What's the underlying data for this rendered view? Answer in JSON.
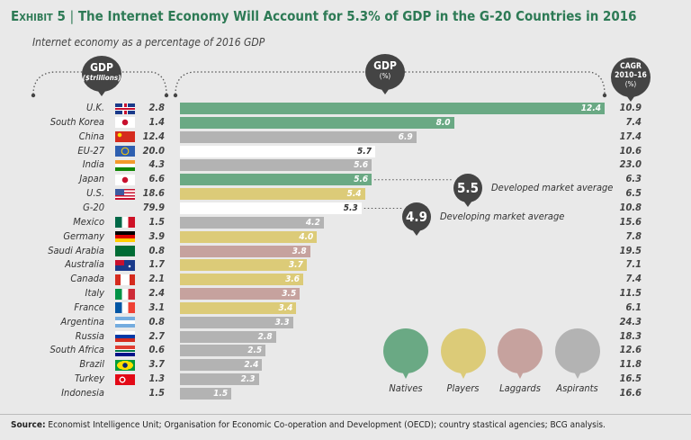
{
  "header": {
    "exhibit": "Exhibit 5",
    "separator": "|",
    "title": "The Internet Economy Will Account for 5.3% of GDP in the G-20 Countries in 2016",
    "subtitle": "Internet economy as a percentage of 2016 GDP"
  },
  "column_headers": {
    "gdp_title": "GDP",
    "gdp_unit": "($trillions)",
    "pct_title": "GDP",
    "pct_unit": "(%)",
    "cagr_title": "CAGR",
    "cagr_period": "2010–16",
    "cagr_unit": "(%)"
  },
  "colors": {
    "Natives": "#6aa984",
    "Players": "#dccb78",
    "Laggards": "#c6a29e",
    "Aspirants": "#b3b3b3",
    "Aggregate": "#ffffff",
    "title": "#2d7a55"
  },
  "chart_data": {
    "type": "bar",
    "orientation": "horizontal",
    "xlim": [
      0,
      12.4
    ],
    "categories": [
      "U.K.",
      "South Korea",
      "China",
      "EU-27",
      "India",
      "Japan",
      "U.S.",
      "G-20",
      "Mexico",
      "Germany",
      "Saudi Arabia",
      "Australia",
      "Canada",
      "Italy",
      "France",
      "Argentina",
      "Russia",
      "South Africa",
      "Brazil",
      "Turkey",
      "Indonesia"
    ],
    "gdp_trillions": [
      "2.8",
      "1.4",
      "12.4",
      "20.0",
      "4.3",
      "6.6",
      "18.6",
      "79.9",
      "1.5",
      "3.9",
      "0.8",
      "1.7",
      "2.1",
      "2.4",
      "3.1",
      "0.8",
      "2.7",
      "0.6",
      "3.7",
      "1.3",
      "1.5"
    ],
    "values": [
      "12.4",
      "8.0",
      "6.9",
      "5.7",
      "5.6",
      "5.6",
      "5.4",
      "5.3",
      "4.2",
      "4.0",
      "3.8",
      "3.7",
      "3.6",
      "3.5",
      "3.4",
      "3.3",
      "2.8",
      "2.5",
      "2.4",
      "2.3",
      "1.5"
    ],
    "cagr": [
      "10.9",
      "7.4",
      "17.4",
      "10.6",
      "23.0",
      "6.3",
      "6.5",
      "10.8",
      "15.6",
      "7.8",
      "19.5",
      "7.1",
      "7.4",
      "11.5",
      "6.1",
      "24.3",
      "18.3",
      "12.6",
      "11.8",
      "16.5",
      "16.6"
    ],
    "group": [
      "Natives",
      "Natives",
      "Aspirants",
      "Aggregate",
      "Aspirants",
      "Natives",
      "Players",
      "Aggregate",
      "Aspirants",
      "Players",
      "Laggards",
      "Players",
      "Players",
      "Laggards",
      "Players",
      "Aspirants",
      "Aspirants",
      "Aspirants",
      "Aspirants",
      "Aspirants",
      "Aspirants"
    ],
    "flags": [
      "uk-flag-icon",
      "south-korea-flag-icon",
      "china-flag-icon",
      "eu-flag-icon",
      "india-flag-icon",
      "japan-flag-icon",
      "us-flag-icon",
      "",
      "mexico-flag-icon",
      "germany-flag-icon",
      "saudi-arabia-flag-icon",
      "australia-flag-icon",
      "canada-flag-icon",
      "italy-flag-icon",
      "france-flag-icon",
      "argentina-flag-icon",
      "russia-flag-icon",
      "south-africa-flag-icon",
      "brazil-flag-icon",
      "turkey-flag-icon",
      ""
    ],
    "annotations": [
      {
        "value": "5.5",
        "text": "Developed market average"
      },
      {
        "value": "4.9",
        "text": "Developing market average"
      }
    ],
    "legend": [
      "Natives",
      "Players",
      "Laggards",
      "Aspirants"
    ],
    "legend_placement": "bottom-right"
  },
  "source": {
    "label": "Source:",
    "text": " Economist Intelligence Unit; Organisation for Economic Co-operation and Development (OECD); country stastical agencies; BCG analysis."
  }
}
